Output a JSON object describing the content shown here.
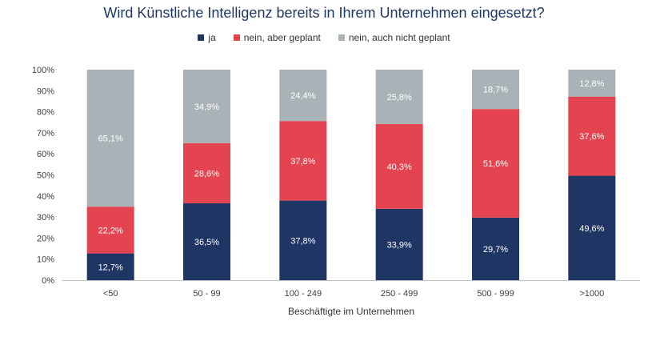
{
  "chart_data": {
    "type": "bar",
    "stacked": true,
    "title": "Wird Künstliche Intelligenz bereits in Ihrem Unternehmen eingesetzt?",
    "xlabel": "Beschäftigte im Unternehmen",
    "ylabel": "",
    "ylim": [
      0,
      100
    ],
    "y_ticks": [
      "0%",
      "10%",
      "20%",
      "30%",
      "40%",
      "50%",
      "60%",
      "70%",
      "80%",
      "90%",
      "100%"
    ],
    "categories": [
      "<50",
      "50 - 99",
      "100 - 249",
      "250 - 499",
      "500 - 999",
      ">1000"
    ],
    "legend_position": "top",
    "grid": false,
    "series": [
      {
        "name": "ja",
        "color": "#1f3564",
        "label_color": "#ffffff",
        "values": [
          12.7,
          36.5,
          37.8,
          33.9,
          29.7,
          49.6
        ],
        "labels": [
          "12,7%",
          "36,5%",
          "37,8%",
          "33,9%",
          "29,7%",
          "49,6%"
        ]
      },
      {
        "name": "nein, aber geplant",
        "color": "#e44450",
        "label_color": "#ffffff",
        "values": [
          22.2,
          28.6,
          37.8,
          40.3,
          51.6,
          37.6
        ],
        "labels": [
          "22,2%",
          "28,6%",
          "37,8%",
          "40,3%",
          "51,6%",
          "37,6%"
        ]
      },
      {
        "name": "nein, auch nicht geplant",
        "color": "#a9b2b6",
        "label_color": "#ffffff",
        "values": [
          65.1,
          34.9,
          24.4,
          25.8,
          18.7,
          12.8
        ],
        "labels": [
          "65,1%",
          "34,9%",
          "24,4%",
          "25,8%",
          "18,7%",
          "12,8%"
        ]
      }
    ]
  }
}
